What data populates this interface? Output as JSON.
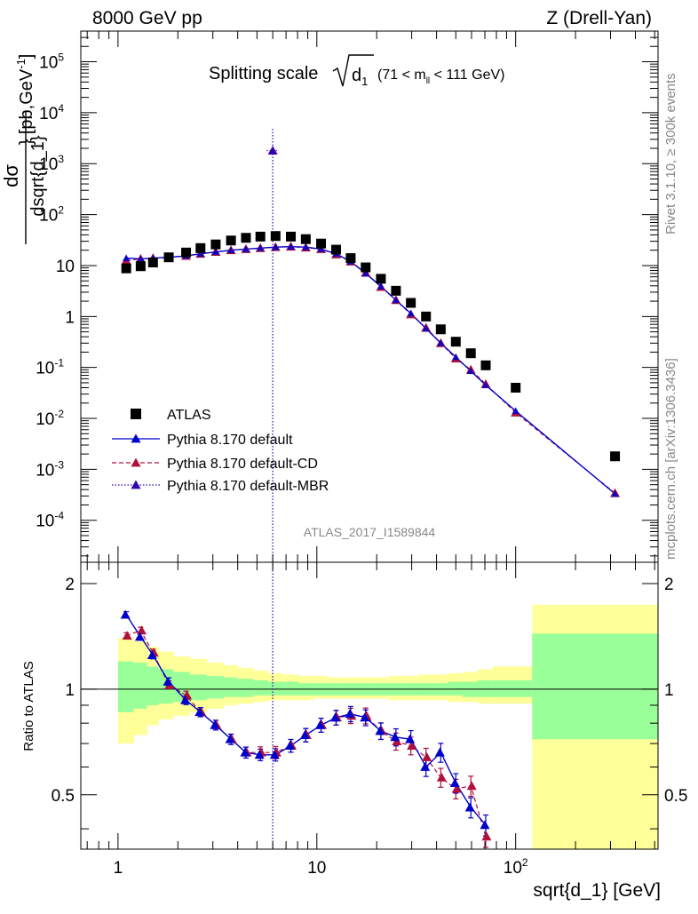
{
  "header": {
    "left": "8000 GeV pp",
    "right": "Z (Drell-Yan)"
  },
  "side_text": {
    "rivet": "Rivet 3.1.10, ≥ 300k events",
    "mcplots": "mcplots.cern.ch [arXiv:1306.3436]"
  },
  "analysis_id": "ATLAS_2017_I1589844",
  "colors": {
    "atlas": "#000000",
    "default": "#0000cc",
    "cd": "#b0103a",
    "mbr": "#3300aa",
    "band_inner": "#99ff99",
    "band_outer": "#ffff99"
  },
  "chart_data": [
    {
      "type": "scatter",
      "panel": "main",
      "title": "Splitting scale √d₁ (71 < m_ll < 111 GeV)",
      "xlabel": "sqrt{d_1} [GeV]",
      "ylabel": "dσ / dsqrt{d_1} [pb,GeV⁻¹]",
      "xscale": "log",
      "yscale": "log",
      "xlim": [
        0.65,
        520
      ],
      "ylim": [
        1.5e-05,
        400000
      ],
      "x_ticks": [
        "1",
        "10",
        "10²"
      ],
      "y_ticks": [
        "10⁻⁴",
        "10⁻³",
        "10⁻²",
        "10⁻¹",
        "1",
        "10",
        "10²",
        "10³",
        "10⁴",
        "10⁵"
      ],
      "legend_position": "lower-left",
      "series": [
        {
          "name": "ATLAS",
          "x": [
            1.1,
            1.3,
            1.5,
            1.8,
            2.2,
            2.6,
            3.1,
            3.7,
            4.4,
            5.2,
            6.2,
            7.4,
            8.8,
            10.5,
            12.5,
            14.8,
            17.6,
            21,
            25,
            29.7,
            35.4,
            42,
            50,
            59.5,
            70.7,
            100,
            316
          ],
          "y": [
            8.8,
            9.7,
            11.5,
            14.5,
            18,
            22,
            26,
            31,
            35,
            37,
            38,
            37,
            33,
            27,
            20.5,
            14,
            9.2,
            5.5,
            3.2,
            1.85,
            1.0,
            0.56,
            0.32,
            0.19,
            0.11,
            0.04,
            0.0018
          ]
        },
        {
          "name": "Pythia 8.170 default",
          "x": [
            1.1,
            1.3,
            1.5,
            1.8,
            2.2,
            2.6,
            3.1,
            3.7,
            4.4,
            5.2,
            6.2,
            7.4,
            8.8,
            10.5,
            12.5,
            14.8,
            17.6,
            21,
            25,
            29.7,
            35.4,
            42,
            50,
            59.5,
            70.7,
            100,
            316
          ],
          "y": [
            14,
            13.5,
            14,
            14.5,
            15.5,
            17,
            18.5,
            20,
            21,
            22,
            23,
            23.5,
            23,
            21,
            17,
            12,
            7,
            3.9,
            2.1,
            1.15,
            0.58,
            0.3,
            0.16,
            0.085,
            0.045,
            0.014,
            0.00033
          ]
        },
        {
          "name": "Pythia 8.170 default-CD",
          "x": [
            1.1,
            1.3,
            1.5,
            1.8,
            2.2,
            2.6,
            3.1,
            3.7,
            4.4,
            5.2,
            6.2,
            7.4,
            8.8,
            10.5,
            12.5,
            14.8,
            17.6,
            21,
            25,
            29.7,
            35.4,
            42,
            50,
            59.5,
            70.7,
            100,
            316
          ],
          "y": [
            12.5,
            13.5,
            14,
            14.5,
            15.5,
            17,
            18.5,
            20,
            21,
            22,
            23,
            23.5,
            22.5,
            21,
            16.5,
            12,
            7.2,
            3.8,
            2.1,
            1.1,
            0.6,
            0.3,
            0.15,
            0.09,
            0.047,
            0.013,
            0.00034
          ]
        },
        {
          "name": "Pythia 8.170 default-MBR",
          "x": [
            6.0
          ],
          "y": [
            1800
          ]
        }
      ]
    },
    {
      "type": "line",
      "panel": "ratio",
      "ylabel": "Ratio to ATLAS",
      "xscale": "log",
      "xlim": [
        0.65,
        520
      ],
      "ylim": [
        0.35,
        2.3
      ],
      "y_ticks": [
        "0.5",
        "1",
        "2"
      ],
      "bands": {
        "bins": [
          1.0,
          1.2,
          1.4,
          1.6,
          1.9,
          2.3,
          2.8,
          3.4,
          4.0,
          4.8,
          5.7,
          6.8,
          8.1,
          9.6,
          11.4,
          13.6,
          16.1,
          19.2,
          22.8,
          27.1,
          32.2,
          38.3,
          45.5,
          54.1,
          64.3,
          76.5,
          121,
          520
        ],
        "inner_lo": [
          0.86,
          0.88,
          0.9,
          0.91,
          0.92,
          0.93,
          0.94,
          0.95,
          0.95,
          0.96,
          0.96,
          0.96,
          0.96,
          0.96,
          0.96,
          0.96,
          0.96,
          0.96,
          0.96,
          0.96,
          0.96,
          0.96,
          0.96,
          0.95,
          0.95,
          0.95,
          0.72
        ],
        "inner_hi": [
          1.2,
          1.19,
          1.16,
          1.14,
          1.12,
          1.1,
          1.09,
          1.08,
          1.07,
          1.06,
          1.05,
          1.05,
          1.04,
          1.04,
          1.04,
          1.04,
          1.04,
          1.04,
          1.04,
          1.04,
          1.04,
          1.04,
          1.05,
          1.05,
          1.06,
          1.06,
          1.44
        ],
        "outer_lo": [
          0.7,
          0.74,
          0.79,
          0.82,
          0.84,
          0.86,
          0.88,
          0.9,
          0.91,
          0.92,
          0.93,
          0.93,
          0.93,
          0.94,
          0.94,
          0.94,
          0.94,
          0.94,
          0.93,
          0.93,
          0.93,
          0.93,
          0.92,
          0.92,
          0.91,
          0.91,
          0.34
        ],
        "outer_hi": [
          1.4,
          1.37,
          1.32,
          1.28,
          1.24,
          1.22,
          1.19,
          1.17,
          1.15,
          1.13,
          1.11,
          1.1,
          1.09,
          1.09,
          1.08,
          1.08,
          1.08,
          1.08,
          1.09,
          1.09,
          1.1,
          1.1,
          1.11,
          1.12,
          1.14,
          1.16,
          1.74
        ]
      },
      "series": [
        {
          "name": "Pythia 8.170 default",
          "x": [
            1.1,
            1.3,
            1.5,
            1.8,
            2.2,
            2.6,
            3.1,
            3.7,
            4.4,
            5.2,
            6.2,
            7.4,
            8.8,
            10.5,
            12.5,
            14.8,
            17.6,
            21,
            25,
            29.7,
            35.4,
            42,
            50,
            59.5,
            70.7
          ],
          "y": [
            1.63,
            1.41,
            1.25,
            1.05,
            0.93,
            0.86,
            0.79,
            0.72,
            0.66,
            0.65,
            0.65,
            0.69,
            0.74,
            0.79,
            0.83,
            0.85,
            0.83,
            0.76,
            0.73,
            0.72,
            0.6,
            0.66,
            0.54,
            0.46,
            0.41
          ]
        },
        {
          "name": "Pythia 8.170 default-CD",
          "x": [
            1.1,
            1.3,
            1.5,
            1.8,
            2.2,
            2.6,
            3.1,
            3.7,
            4.4,
            5.2,
            6.2,
            7.4,
            8.8,
            10.5,
            12.5,
            14.8,
            17.6,
            21,
            25,
            29.7,
            35.4,
            42,
            50,
            59.5,
            70.7
          ],
          "y": [
            1.42,
            1.47,
            1.27,
            1.03,
            0.96,
            0.86,
            0.79,
            0.72,
            0.66,
            0.66,
            0.66,
            0.69,
            0.74,
            0.79,
            0.83,
            0.84,
            0.84,
            0.76,
            0.71,
            0.69,
            0.64,
            0.56,
            0.52,
            0.53,
            0.38
          ]
        }
      ]
    }
  ]
}
